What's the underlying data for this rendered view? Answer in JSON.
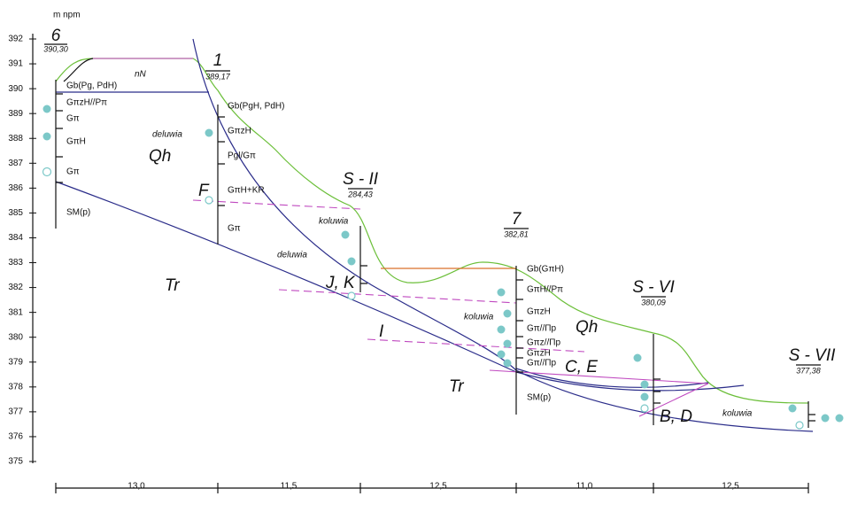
{
  "axis": {
    "label": "m npm",
    "ticks": [
      392,
      391,
      390,
      389,
      388,
      387,
      386,
      385,
      384,
      383,
      382,
      381,
      380,
      379,
      378,
      377,
      376,
      375
    ]
  },
  "boreholes": [
    {
      "name": "6",
      "elevation": "390,30",
      "layers": [
        "Gb(Pg, PdH)",
        "GπzH//Pπ",
        "Gπ",
        "GπH",
        "Gπ",
        "SM(p)"
      ]
    },
    {
      "name": "1",
      "elevation": "389,17",
      "layers": [
        "Gb(PgH, PdH)",
        "GπzH",
        "Pgl/Gπ",
        "GπH+KR",
        "Gπ"
      ]
    },
    {
      "name": "S - II",
      "elevation": "284,43"
    },
    {
      "name": "7",
      "elevation": "382,81",
      "layers": [
        "Gb(GπH)",
        "GπH//Pπ",
        "GπzH",
        "Gπ//Πp",
        "Gπz//Πp",
        "GπzH",
        "Gπ//Πp",
        "SM(p)"
      ]
    },
    {
      "name": "S - VI",
      "elevation": "380,09"
    },
    {
      "name": "S - VII",
      "elevation": "377,38"
    }
  ],
  "zones": [
    "nN",
    "deluwia",
    "Qh",
    "F",
    "Tr",
    "deluwia",
    "koluwia",
    "J, K",
    "I",
    "koluwia",
    "Qh",
    "Tr",
    "C, E",
    "B, D",
    "koluwia"
  ],
  "distances": [
    "13,0",
    "11,5",
    "12,5",
    "11,0",
    "12,5"
  ]
}
